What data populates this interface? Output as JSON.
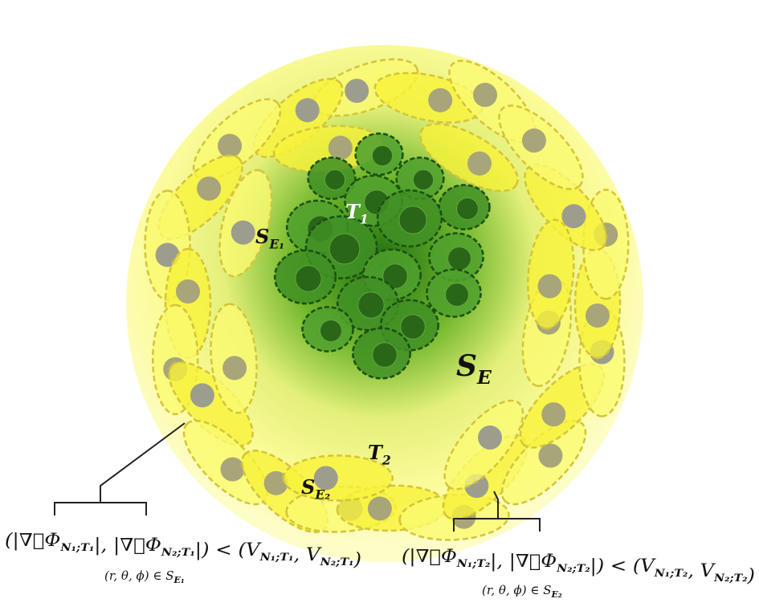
{
  "labels": [
    {
      "base": "T",
      "sub": "1"
    },
    {
      "base": "S",
      "sub": "E₁"
    },
    {
      "base": "S",
      "sub": "E"
    },
    {
      "base": "T",
      "sub": "2"
    },
    {
      "base": "S",
      "sub": "E₂"
    }
  ],
  "formulas": [
    {
      "parts": [
        {
          "text": "(|∇⃗Φ",
          "sub": "N₁;T₁"
        },
        {
          "text": "|, |∇⃗Φ",
          "sub": "N₂;T₁"
        },
        {
          "text": "|) < (V",
          "sub": "N₁;T₁"
        },
        {
          "text": ", V",
          "sub": "N₂;T₁"
        },
        {
          "text": ")"
        }
      ],
      "domain": {
        "text": "(r, θ, ϕ) ∈ S",
        "sub": "E₁"
      }
    },
    {
      "parts": [
        {
          "text": "(|∇⃗Φ",
          "sub": "N₁;T₂"
        },
        {
          "text": "|, |∇⃗Φ",
          "sub": "N₂;T₂"
        },
        {
          "text": "|) < (V",
          "sub": "N₁;T₂"
        },
        {
          "text": ", V",
          "sub": "N₂;T₂"
        },
        {
          "text": ")"
        }
      ],
      "domain": {
        "text": "(r, θ, ϕ) ∈ S",
        "sub": "E₂"
      }
    }
  ]
}
